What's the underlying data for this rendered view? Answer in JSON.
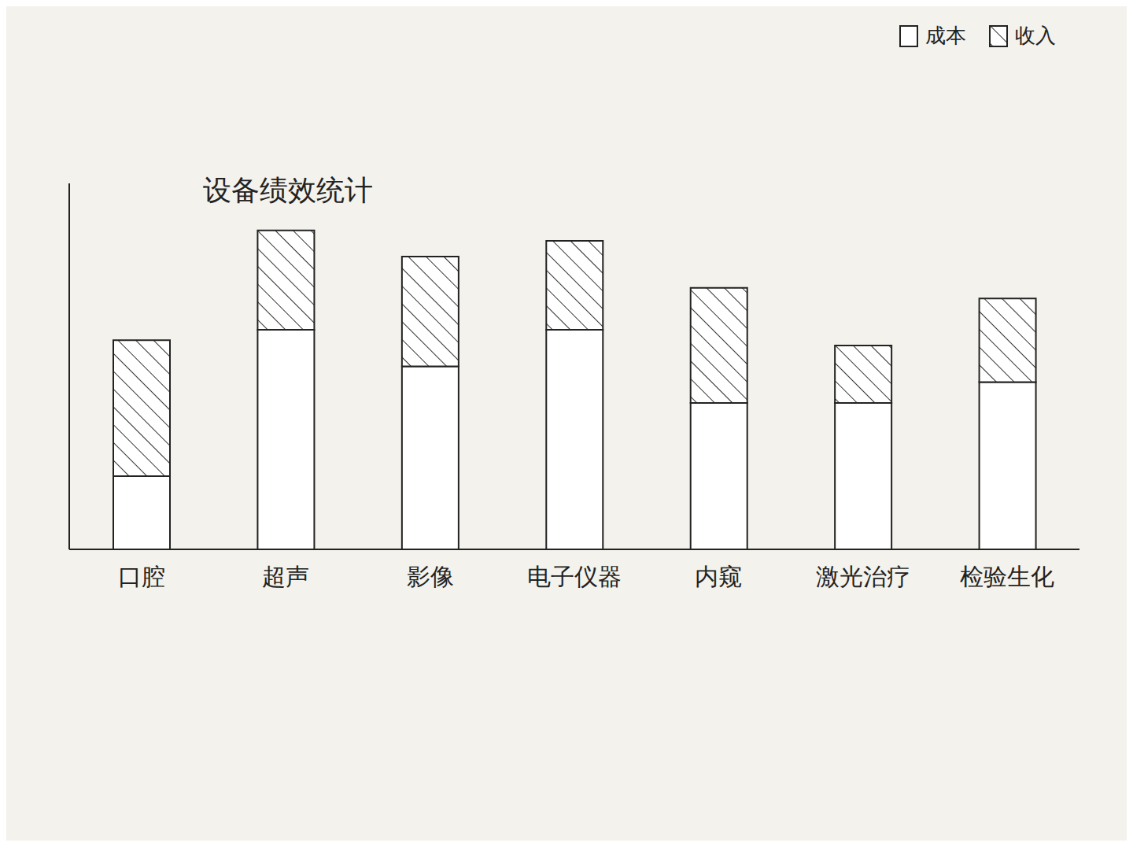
{
  "chart_data": {
    "type": "bar",
    "title": "设备绩效统计",
    "categories": [
      "口腔",
      "超声",
      "影像",
      "电子仪器",
      "内窥",
      "激光治疗",
      "检验生化"
    ],
    "series": [
      {
        "name": "成本",
        "color": "#ffffff",
        "values": [
          7,
          21,
          17.5,
          21,
          14,
          14,
          16
        ]
      },
      {
        "name": "收入",
        "color": "#333333",
        "values": [
          13,
          9.5,
          10.5,
          8.5,
          11,
          5.5,
          8
        ]
      }
    ],
    "stacked": true,
    "ylim": [
      0,
      35
    ],
    "tick_labels": "x",
    "legend": "top-right",
    "grid": false
  }
}
